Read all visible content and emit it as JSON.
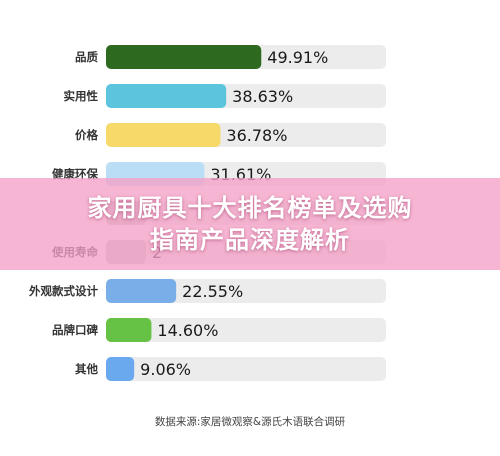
{
  "chart_data": {
    "type": "bar",
    "orientation": "horizontal",
    "categories": [
      "品质",
      "实用性",
      "价格",
      "健康环保",
      "",
      "使用寿命",
      "外观款式设计",
      "品牌口碑",
      "其他"
    ],
    "values": [
      49.91,
      38.63,
      36.78,
      31.61,
      null,
      null,
      22.55,
      14.6,
      9.06
    ],
    "value_labels": [
      "49.91%",
      "38.63%",
      "36.78%",
      "31.61%",
      "",
      "2",
      "22.55%",
      "14.60%",
      "9.06%"
    ],
    "colors": [
      "#2d6a1f",
      "#5cc4dc",
      "#f7d96a",
      "#b9def5",
      "#c9c9c9",
      "#c9c9c9",
      "#7aaee8",
      "#66c244",
      "#6aa9ee"
    ],
    "track_color": "#ececec",
    "xlim": [
      0,
      90
    ],
    "source": "数据来源:家居微观察&源氏木语联合调研"
  },
  "banner": {
    "line1": "家用厨具十大排名榜单及选购",
    "line2": "指南产品深度解析"
  }
}
